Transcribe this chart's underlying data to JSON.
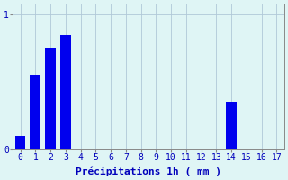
{
  "categories": [
    0,
    1,
    2,
    3,
    4,
    5,
    6,
    7,
    8,
    9,
    10,
    11,
    12,
    13,
    14,
    15,
    16,
    17
  ],
  "values": [
    0.1,
    0.55,
    0.75,
    0.85,
    0,
    0,
    0,
    0,
    0,
    0,
    0,
    0,
    0,
    0,
    0.35,
    0,
    0,
    0
  ],
  "bar_color": "#0000ee",
  "bg_color": "#dff5f5",
  "grid_color": "#b0c8d8",
  "axis_label_color": "#0000bb",
  "tick_color": "#0000bb",
  "xlabel": "Précipitations 1h ( mm )",
  "ylim": [
    0,
    1.08
  ],
  "yticks": [
    0,
    1
  ],
  "xlim": [
    -0.5,
    17.5
  ],
  "label_fontsize": 8,
  "tick_fontsize": 7
}
